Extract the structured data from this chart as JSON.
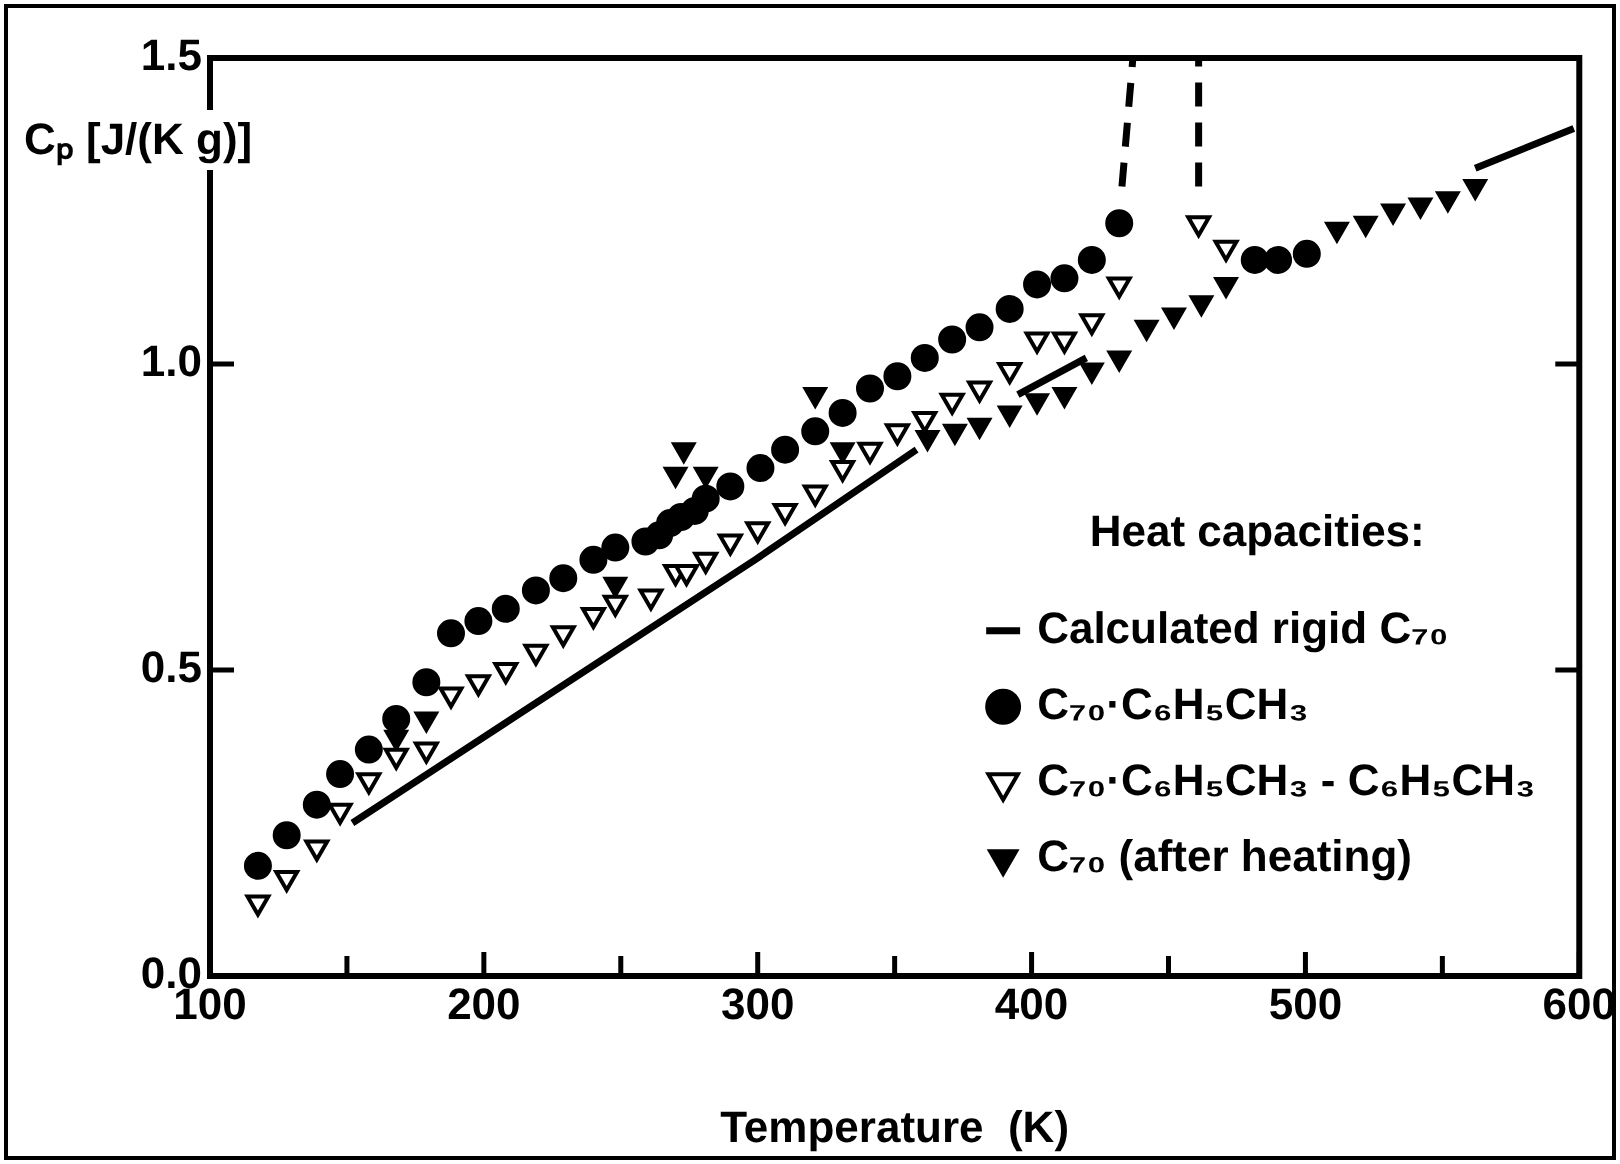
{
  "chart_data": {
    "type": "scatter",
    "xlabel": "Temperature  (K)",
    "ylabel": "Cₚ [J/(K g)]",
    "legend_title": "Heat capacities:",
    "xlim": [
      100,
      600
    ],
    "ylim": [
      0,
      1.5
    ],
    "xticks": [
      100,
      {
        "value": 150,
        "label": null
      },
      200,
      {
        "value": 250,
        "label": null
      },
      300,
      {
        "value": 350,
        "label": null
      },
      400,
      {
        "value": 450,
        "label": null
      },
      500,
      {
        "value": 550,
        "label": null
      },
      600
    ],
    "yticks": [
      {
        "value": 0,
        "label": "0.0"
      },
      0.5,
      {
        "value": 1,
        "label": "1.0"
      },
      1.5
    ],
    "grid": false,
    "legend": "bottom right",
    "series": [
      {
        "name": "Calculated rigid C₇₀",
        "type": "line",
        "marker": "none",
        "line_style": "solid",
        "color": "#000000",
        "x": [
          152,
          299,
          358,
          376,
          395,
          420,
          491,
          562,
          598
        ],
        "values": [
          0.25,
          0.68,
          0.86,
          null,
          0.95,
          1.01,
          null,
          1.32,
          1.385
        ]
      },
      {
        "name": "C₇₀·C₆H₅CH₃",
        "marker": "circle",
        "color": "#000000",
        "x": [
          117.5,
          128,
          139,
          147.5,
          158,
          168,
          179,
          188,
          198,
          208,
          219,
          229,
          240,
          248,
          259,
          264,
          268,
          272,
          277,
          281,
          290,
          301,
          310,
          321,
          331,
          341,
          351,
          361,
          371,
          381,
          392,
          402,
          412,
          422,
          432,
          481.5,
          490,
          500.5
        ],
        "values": [
          0.18,
          0.23,
          0.28,
          0.33,
          0.37,
          0.42,
          0.48,
          0.56,
          0.58,
          0.6,
          0.63,
          0.65,
          0.68,
          0.7,
          0.71,
          0.72,
          0.74,
          0.75,
          0.76,
          0.78,
          0.8,
          0.83,
          0.86,
          0.89,
          0.92,
          0.96,
          0.98,
          1.01,
          1.04,
          1.06,
          1.09,
          1.13,
          1.14,
          1.17,
          1.23,
          1.17,
          1.17,
          1.18
        ]
      },
      {
        "name": "C₇₀·C₆H₅CH₃ - C₆H₅CH₃",
        "marker": "triangle-down-open",
        "color": "#000000",
        "x": [
          117.5,
          128,
          139,
          147.5,
          158,
          168,
          179,
          188,
          198,
          208,
          219,
          229,
          240,
          248,
          261,
          270,
          274,
          281,
          290,
          300,
          310,
          321,
          331,
          341,
          351,
          361,
          371,
          381,
          392,
          402,
          412,
          422,
          432,
          461,
          471
        ],
        "values": [
          0.12,
          0.16,
          0.21,
          0.27,
          0.32,
          0.36,
          0.37,
          0.46,
          0.48,
          0.5,
          0.53,
          0.56,
          0.59,
          0.61,
          0.62,
          0.66,
          0.66,
          0.68,
          0.71,
          0.73,
          0.76,
          0.79,
          0.83,
          0.86,
          0.89,
          0.91,
          0.94,
          0.96,
          0.99,
          1.04,
          1.04,
          1.07,
          1.13,
          1.23,
          1.19
        ]
      },
      {
        "name": "C₇₀ (after heating)",
        "marker": "triangle-down",
        "color": "#000000",
        "x": [
          168,
          179,
          188,
          248,
          270,
          273,
          281,
          321,
          331,
          362,
          372,
          381,
          392,
          402,
          412,
          422,
          432,
          442,
          452,
          462,
          471,
          511.5,
          522,
          532,
          542,
          552,
          562
        ],
        "values": [
          0.39,
          0.42,
          null,
          0.64,
          0.82,
          0.86,
          0.82,
          0.95,
          0.86,
          0.88,
          0.89,
          0.9,
          0.92,
          0.94,
          0.95,
          0.99,
          1.01,
          1.06,
          1.08,
          1.1,
          1.13,
          1.22,
          1.23,
          1.25,
          1.26,
          1.27,
          1.29
        ]
      },
      {
        "type": "line",
        "marker": "none",
        "line_style": "dashed",
        "color": "#000000",
        "x": [
          433,
          437
        ],
        "values": [
          1.29,
          1.5
        ]
      },
      {
        "type": "line",
        "marker": "none",
        "line_style": "dashed",
        "color": "#000000",
        "x": [
          461,
          461
        ],
        "values": [
          1.29,
          1.5
        ]
      }
    ]
  }
}
